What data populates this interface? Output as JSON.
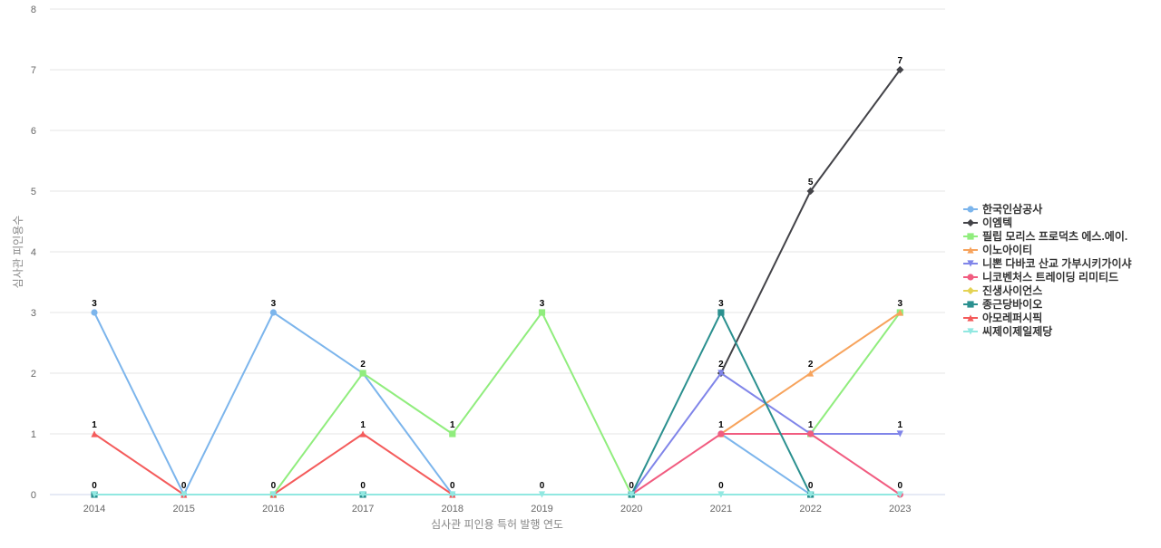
{
  "chart_data": {
    "type": "line",
    "title": "",
    "xlabel": "심사관 피인용 특허 발행 연도",
    "ylabel": "심사관 피인용수",
    "x": [
      "2014",
      "2015",
      "2016",
      "2017",
      "2018",
      "2019",
      "2020",
      "2021",
      "2022",
      "2023"
    ],
    "ylim": [
      0,
      8
    ],
    "yticks": [
      0,
      1,
      2,
      3,
      4,
      5,
      6,
      7,
      8
    ],
    "grid": true,
    "legend_position": "right",
    "series": [
      {
        "name": "한국인삼공사",
        "color": "#7cb5ec",
        "marker": "circle",
        "values": [
          3,
          0,
          3,
          2,
          0,
          null,
          null,
          1,
          0,
          null
        ]
      },
      {
        "name": "이엠텍",
        "color": "#434348",
        "marker": "diamond",
        "values": [
          null,
          null,
          null,
          null,
          null,
          null,
          null,
          2,
          5,
          7
        ]
      },
      {
        "name": "필립 모리스 프로덕츠 에스.에이.",
        "color": "#90ed7d",
        "marker": "square",
        "values": [
          null,
          null,
          0,
          2,
          1,
          3,
          0,
          null,
          1,
          3
        ]
      },
      {
        "name": "이노아이티",
        "color": "#f7a35c",
        "marker": "triangle",
        "values": [
          null,
          null,
          null,
          null,
          null,
          null,
          null,
          1,
          2,
          3
        ]
      },
      {
        "name": "니뽄 다바코 산교 가부시키가이샤",
        "color": "#8085e9",
        "marker": "triangle-down",
        "values": [
          null,
          null,
          null,
          null,
          null,
          null,
          0,
          2,
          1,
          1
        ]
      },
      {
        "name": "니코벤처스 트레이딩 리미티드",
        "color": "#f15c80",
        "marker": "circle",
        "values": [
          null,
          null,
          null,
          null,
          null,
          null,
          0,
          1,
          1,
          0
        ]
      },
      {
        "name": "진생사이언스",
        "color": "#e4d354",
        "marker": "diamond",
        "values": [
          null,
          null,
          null,
          null,
          null,
          null,
          null,
          null,
          null,
          null
        ]
      },
      {
        "name": "종근당바이오",
        "color": "#2b908f",
        "marker": "square",
        "values": [
          0,
          null,
          null,
          0,
          null,
          null,
          0,
          3,
          0,
          null
        ]
      },
      {
        "name": "아모레퍼시픽",
        "color": "#f45b5b",
        "marker": "triangle",
        "values": [
          1,
          0,
          0,
          1,
          0,
          null,
          null,
          null,
          null,
          null
        ]
      },
      {
        "name": "씨제이제일제당",
        "color": "#91e8e1",
        "marker": "triangle-down",
        "values": [
          0,
          0,
          0,
          0,
          0,
          0,
          0,
          0,
          0,
          0
        ]
      }
    ],
    "data_labels": [
      {
        "x": "2014",
        "value": "3",
        "y": 3
      },
      {
        "x": "2014",
        "value": "1",
        "y": 1
      },
      {
        "x": "2014",
        "value": "0",
        "y": 0
      },
      {
        "x": "2015",
        "value": "0",
        "y": 0
      },
      {
        "x": "2016",
        "value": "3",
        "y": 3
      },
      {
        "x": "2016",
        "value": "0",
        "y": 0
      },
      {
        "x": "2017",
        "value": "2",
        "y": 2
      },
      {
        "x": "2017",
        "value": "1",
        "y": 1
      },
      {
        "x": "2017",
        "value": "0",
        "y": 0
      },
      {
        "x": "2018",
        "value": "1",
        "y": 1
      },
      {
        "x": "2018",
        "value": "0",
        "y": 0
      },
      {
        "x": "2019",
        "value": "3",
        "y": 3
      },
      {
        "x": "2019",
        "value": "0",
        "y": 0
      },
      {
        "x": "2020",
        "value": "0",
        "y": 0
      },
      {
        "x": "2021",
        "value": "3",
        "y": 3
      },
      {
        "x": "2021",
        "value": "2",
        "y": 2
      },
      {
        "x": "2021",
        "value": "1",
        "y": 1
      },
      {
        "x": "2021",
        "value": "0",
        "y": 0
      },
      {
        "x": "2022",
        "value": "5",
        "y": 5
      },
      {
        "x": "2022",
        "value": "2",
        "y": 2
      },
      {
        "x": "2022",
        "value": "1",
        "y": 1
      },
      {
        "x": "2022",
        "value": "0",
        "y": 0
      },
      {
        "x": "2023",
        "value": "7",
        "y": 7
      },
      {
        "x": "2023",
        "value": "3",
        "y": 3
      },
      {
        "x": "2023",
        "value": "1",
        "y": 1
      },
      {
        "x": "2023",
        "value": "0",
        "y": 0
      }
    ]
  }
}
